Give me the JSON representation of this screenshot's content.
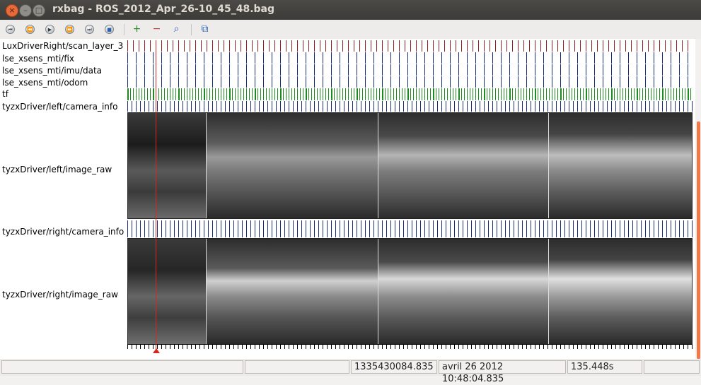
{
  "window": {
    "title": "rxbag - ROS_2012_Apr_26-10_45_48.bag",
    "buttons": [
      {
        "name": "close-icon",
        "glyph": "×"
      },
      {
        "name": "minimize-icon",
        "glyph": "–"
      },
      {
        "name": "maximize-icon",
        "glyph": "□"
      }
    ]
  },
  "toolbar": {
    "buttons": [
      {
        "name": "skip-to-start-button",
        "glyph": "⏮"
      },
      {
        "name": "rewind-button",
        "glyph": "⏪"
      },
      {
        "name": "play-button",
        "glyph": "▶"
      },
      {
        "name": "fast-forward-button",
        "glyph": "⏩"
      },
      {
        "name": "skip-to-end-button",
        "glyph": "⏭"
      },
      {
        "name": "stop-button",
        "glyph": "■"
      },
      {
        "name": "zoom-in-button",
        "glyph": "+"
      },
      {
        "name": "zoom-out-button",
        "glyph": "−"
      },
      {
        "name": "zoom-reset-button",
        "glyph": "⌕"
      },
      {
        "name": "thumbnails-button",
        "glyph": "⧉"
      }
    ]
  },
  "topics": [
    {
      "label": "LuxDriverRight/scan_layer_3",
      "color": "#8b2020"
    },
    {
      "label": "lse_xsens_mti/fix",
      "color": "#1a2a7a"
    },
    {
      "label": "lse_xsens_mti/imu/data",
      "color": "#1a2a7a"
    },
    {
      "label": "lse_xsens_mti/odom",
      "color": "#1a2a7a"
    },
    {
      "label": "tf",
      "color": "#1e8a1e"
    },
    {
      "label": "tyzxDriver/left/camera_info",
      "color": "#1a2a7a"
    },
    {
      "label": "tyzxDriver/left/image_raw"
    },
    {
      "label": "tyzxDriver/right/camera_info",
      "color": "#1a2a7a"
    },
    {
      "label": "tyzxDriver/right/image_raw"
    }
  ],
  "status": {
    "empty1": "",
    "empty2": "",
    "stamp": "1335430084.835",
    "datetime": "avril 26 2012 10:48:04.835",
    "elapsed": "135.448s",
    "empty3": ""
  }
}
